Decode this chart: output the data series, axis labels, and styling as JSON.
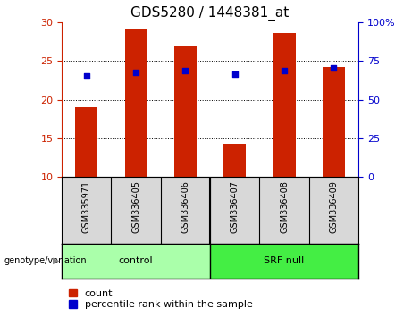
{
  "title": "GDS5280 / 1448381_at",
  "categories": [
    "GSM335971",
    "GSM336405",
    "GSM336406",
    "GSM336407",
    "GSM336408",
    "GSM336409"
  ],
  "bar_values": [
    19.0,
    29.2,
    27.0,
    14.3,
    28.6,
    24.2
  ],
  "dot_values": [
    23.0,
    23.5,
    23.7,
    23.3,
    23.7,
    24.1
  ],
  "bar_color": "#CC2200",
  "dot_color": "#0000CC",
  "ylim_left": [
    10,
    30
  ],
  "ylim_right": [
    0,
    100
  ],
  "yticks_left": [
    10,
    15,
    20,
    25,
    30
  ],
  "yticks_right": [
    0,
    25,
    50,
    75,
    100
  ],
  "ytick_labels_right": [
    "0",
    "25",
    "50",
    "75",
    "100%"
  ],
  "grid_lines": [
    15,
    20,
    25
  ],
  "control_label": "control",
  "srf_null_label": "SRF null",
  "genotype_label": "genotype/variation",
  "legend_count": "count",
  "legend_percentile": "percentile rank within the sample",
  "control_color": "#AAFFAA",
  "srf_null_color": "#44EE44",
  "bar_bottom": 10,
  "left_axis_color": "#CC2200",
  "right_axis_color": "#0000CC",
  "background_color": "#FFFFFF",
  "xlim": [
    -0.5,
    5.5
  ],
  "n_control": 3,
  "n_total": 6,
  "title_fontsize": 11,
  "tick_fontsize": 8,
  "cat_fontsize": 7,
  "label_fontsize": 8,
  "legend_fontsize": 8
}
